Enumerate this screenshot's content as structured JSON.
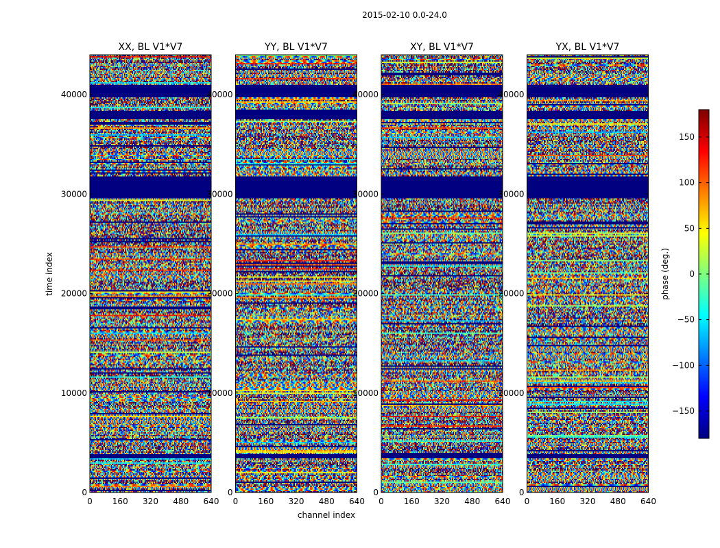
{
  "chart_data": {
    "type": "heatmap",
    "suptitle": "2015-02-10 0.0-24.0",
    "xlabel": "channel index",
    "ylabel": "time index",
    "xlim": [
      0,
      640
    ],
    "ylim": [
      0,
      44000
    ],
    "xticks": [
      0,
      160,
      320,
      480,
      640
    ],
    "yticks": [
      0,
      10000,
      20000,
      30000,
      40000
    ],
    "panels": [
      {
        "title": "XX, BL V1*V7"
      },
      {
        "title": "YY, BL V1*V7"
      },
      {
        "title": "XY, BL V1*V7"
      },
      {
        "title": "YX, BL V1*V7"
      }
    ],
    "colorbar": {
      "label": "phase (deg.)",
      "range": [
        -180,
        180
      ],
      "ticks": [
        -150,
        -100,
        -50,
        0,
        50,
        100,
        150
      ],
      "colormap": "jet"
    },
    "flagged_time_ranges": [
      [
        3500,
        3900
      ],
      [
        29500,
        31800
      ],
      [
        37500,
        38300
      ],
      [
        39800,
        41000
      ]
    ]
  }
}
